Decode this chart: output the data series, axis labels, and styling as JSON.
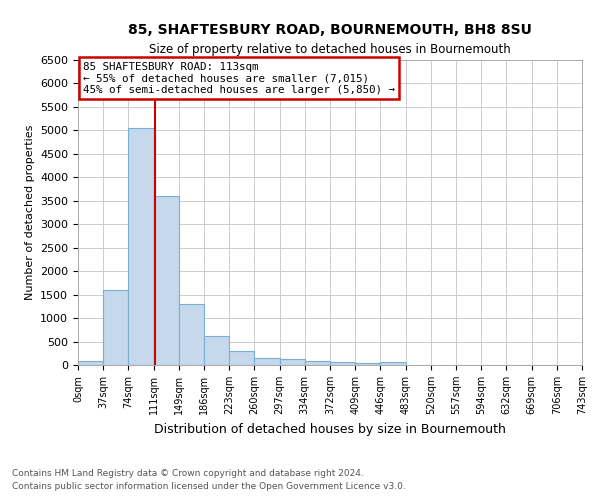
{
  "title1": "85, SHAFTESBURY ROAD, BOURNEMOUTH, BH8 8SU",
  "title2": "Size of property relative to detached houses in Bournemouth",
  "xlabel": "Distribution of detached houses by size in Bournemouth",
  "ylabel": "Number of detached properties",
  "bin_labels": [
    "0sqm",
    "37sqm",
    "74sqm",
    "111sqm",
    "149sqm",
    "186sqm",
    "223sqm",
    "260sqm",
    "297sqm",
    "334sqm",
    "372sqm",
    "409sqm",
    "446sqm",
    "483sqm",
    "520sqm",
    "557sqm",
    "594sqm",
    "632sqm",
    "669sqm",
    "706sqm",
    "743sqm"
  ],
  "bar_values": [
    75,
    1600,
    5050,
    3600,
    1300,
    620,
    300,
    155,
    130,
    80,
    60,
    50,
    65,
    0,
    0,
    0,
    0,
    0,
    0,
    0
  ],
  "bar_color": "#c5d8ec",
  "bar_edge_color": "#7aafd4",
  "property_size": 113,
  "bin_width": 37,
  "ylim": [
    0,
    6500
  ],
  "yticks": [
    0,
    500,
    1000,
    1500,
    2000,
    2500,
    3000,
    3500,
    4000,
    4500,
    5000,
    5500,
    6000,
    6500
  ],
  "red_line_color": "#cc0000",
  "annotation_text_line1": "85 SHAFTESBURY ROAD: 113sqm",
  "annotation_text_line2": "← 55% of detached houses are smaller (7,015)",
  "annotation_text_line3": "45% of semi-detached houses are larger (5,850) →",
  "annotation_box_color": "#cc0000",
  "footer1": "Contains HM Land Registry data © Crown copyright and database right 2024.",
  "footer2": "Contains public sector information licensed under the Open Government Licence v3.0.",
  "bg_color": "#ffffff",
  "grid_color": "#cccccc"
}
